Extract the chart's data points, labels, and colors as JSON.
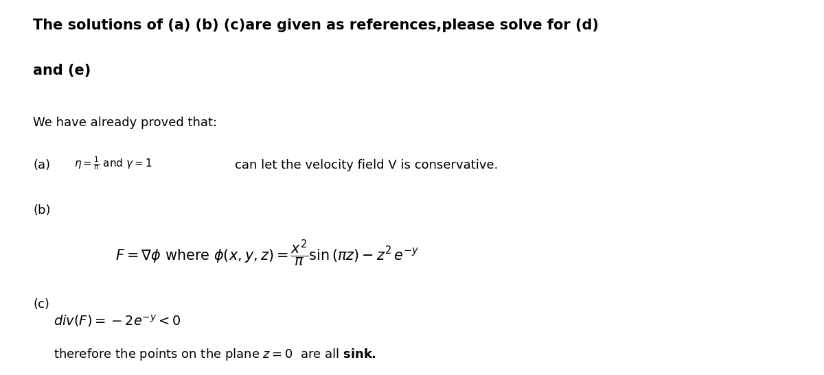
{
  "bg_color": "#ffffff",
  "fig_width": 12.0,
  "fig_height": 5.47,
  "dpi": 100,
  "title_line1": "The solutions of (a) (b) (c)are given as references,please solve for (d)",
  "title_line2": "and (e)",
  "proved_text": "We have already proved that:",
  "label_a": "(a)",
  "label_b": "(b)",
  "label_c": "(c)",
  "text_a_math": "$\\eta = \\frac{1}{\\pi}$ and $\\gamma = 1$",
  "text_a_rest": "can let the velocity field V is conservative.",
  "text_b_math": "$F = \\nabla\\phi$ where $\\phi\\left(x, y, z\\right) = \\dfrac{x^2}{\\pi}\\sin\\left(\\pi z\\right) - z^2\\, e^{-y}$",
  "text_c_math": "$\\mathit{div}(F) = -2e^{-y} < 0$",
  "text_sink": "therefore the points on the plane $z = 0$  are all $\\mathbf{sink.}$",
  "font_title": 15,
  "font_body": 13,
  "font_math": 14
}
